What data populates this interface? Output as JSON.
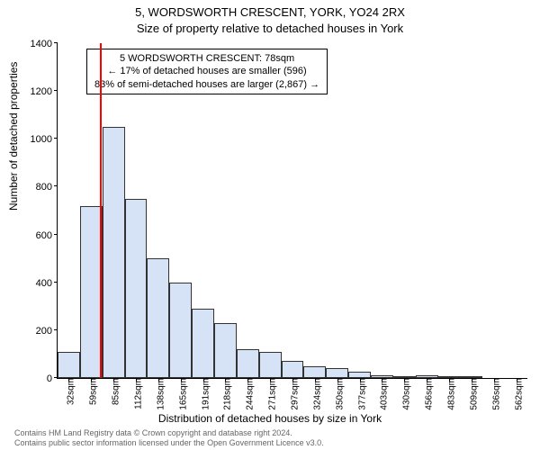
{
  "title_main": "5, WORDSWORTH CRESCENT, YORK, YO24 2RX",
  "title_sub": "Size of property relative to detached houses in York",
  "y_label": "Number of detached properties",
  "x_label": "Distribution of detached houses by size in York",
  "footer_line1": "Contains HM Land Registry data © Crown copyright and database right 2024.",
  "footer_line2": "Contains public sector information licensed under the Open Government Licence v3.0.",
  "chart": {
    "type": "histogram",
    "background_color": "#ffffff",
    "bar_fill": "#d6e3f7",
    "bar_border": "#333333",
    "marker_color": "#ff0000",
    "axis_color": "#000000",
    "ylim": [
      0,
      1400
    ],
    "ytick_step": 200,
    "x_categories": [
      "32sqm",
      "59sqm",
      "85sqm",
      "112sqm",
      "138sqm",
      "165sqm",
      "191sqm",
      "218sqm",
      "244sqm",
      "271sqm",
      "297sqm",
      "324sqm",
      "350sqm",
      "377sqm",
      "403sqm",
      "430sqm",
      "456sqm",
      "483sqm",
      "509sqm",
      "536sqm",
      "562sqm"
    ],
    "bar_values": [
      110,
      720,
      1050,
      750,
      500,
      400,
      290,
      230,
      120,
      110,
      70,
      50,
      40,
      25,
      10,
      2,
      10,
      2,
      2,
      0,
      0
    ],
    "marker_index": 1.9,
    "title_fontsize": 13,
    "label_fontsize": 12,
    "tick_fontsize": 11
  },
  "annotation": {
    "line1": "5 WORDSWORTH CRESCENT: 78sqm",
    "line2": "← 17% of detached houses are smaller (596)",
    "line3": "83% of semi-detached houses are larger (2,867) →",
    "box_border": "#000000",
    "box_bg": "#ffffff",
    "fontsize": 11
  }
}
